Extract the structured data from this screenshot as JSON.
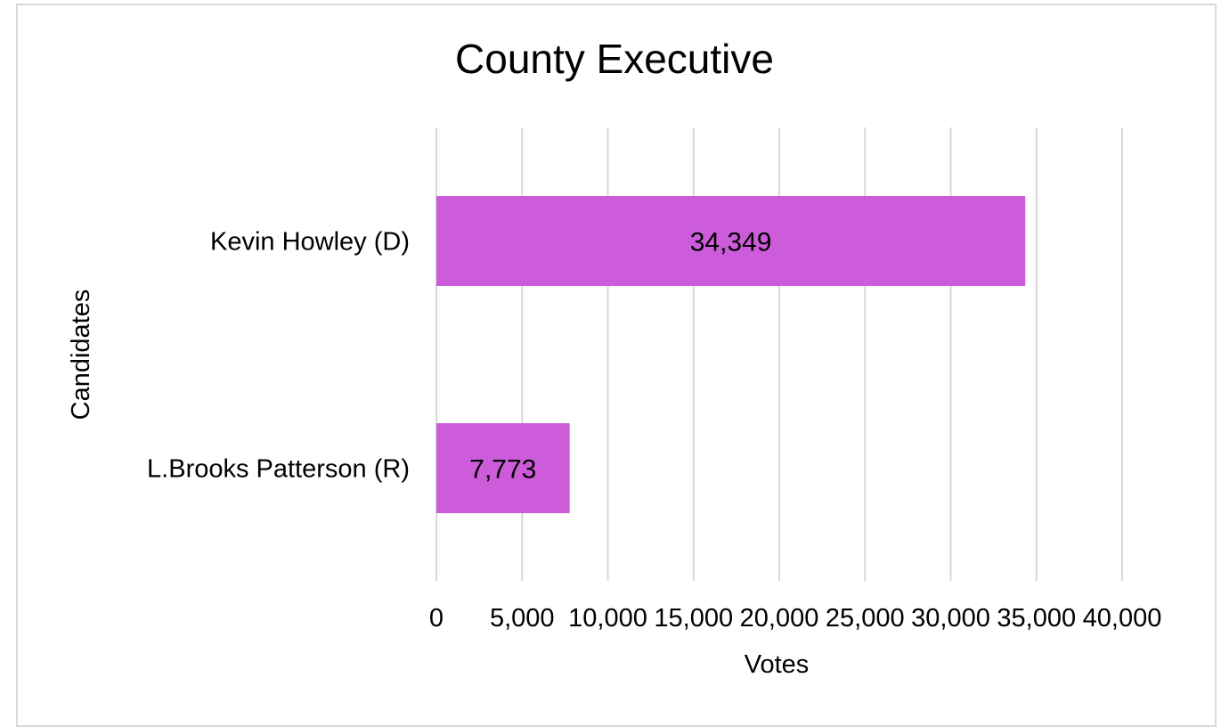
{
  "chart_data": {
    "type": "bar",
    "orientation": "horizontal",
    "title": "County Executive",
    "xlabel": "Votes",
    "ylabel": "Candidates",
    "categories": [
      "Kevin Howley (D)",
      "L.Brooks Patterson (R)"
    ],
    "values": [
      34349,
      7773
    ],
    "value_labels": [
      "34,349",
      "7,773"
    ],
    "xlim": [
      0,
      40000
    ],
    "ticks": [
      0,
      5000,
      10000,
      15000,
      20000,
      25000,
      30000,
      35000,
      40000
    ],
    "tick_labels": [
      "0",
      "5,000",
      "10,000",
      "15,000",
      "20,000",
      "25,000",
      "30,000",
      "35,000",
      "40,000"
    ],
    "bar_color": "#cc5cd9",
    "grid": true,
    "legend": "none"
  }
}
